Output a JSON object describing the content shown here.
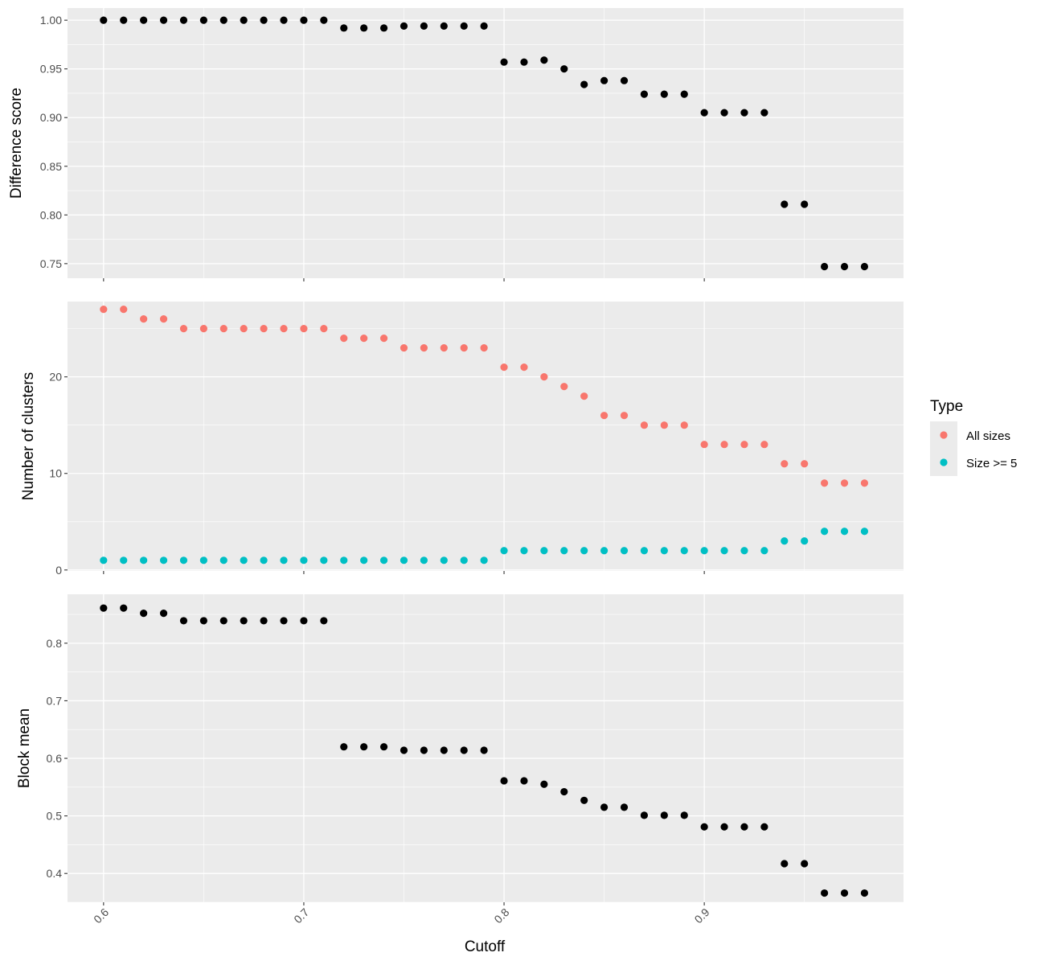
{
  "chart_data": [
    {
      "type": "scatter",
      "ylabel": "Difference score",
      "xlim": [
        0.582,
        0.9995
      ],
      "ylim": [
        0.735,
        1.0125
      ],
      "yticks": [
        0.75,
        0.8,
        0.85,
        0.9,
        0.95,
        1.0
      ],
      "ytick_labels": [
        "0.75",
        "0.80",
        "0.85",
        "0.90",
        "0.95",
        "1.00"
      ],
      "series": [
        {
          "color": "#000000",
          "x": [
            0.6,
            0.61,
            0.62,
            0.63,
            0.64,
            0.65,
            0.66,
            0.67,
            0.68,
            0.69,
            0.7,
            0.71,
            0.72,
            0.73,
            0.74,
            0.75,
            0.76,
            0.77,
            0.78,
            0.79,
            0.8,
            0.81,
            0.82,
            0.83,
            0.84,
            0.85,
            0.86,
            0.87,
            0.88,
            0.89,
            0.9,
            0.91,
            0.92,
            0.93,
            0.94,
            0.95,
            0.96,
            0.97,
            0.98
          ],
          "y": [
            1.0,
            1.0,
            1.0,
            1.0,
            1.0,
            1.0,
            1.0,
            1.0,
            1.0,
            1.0,
            1.0,
            1.0,
            0.992,
            0.992,
            0.992,
            0.994,
            0.994,
            0.994,
            0.994,
            0.994,
            0.957,
            0.957,
            0.959,
            0.95,
            0.934,
            0.938,
            0.938,
            0.924,
            0.924,
            0.924,
            0.905,
            0.905,
            0.905,
            0.905,
            0.811,
            0.811,
            0.747,
            0.747,
            0.747
          ]
        }
      ]
    },
    {
      "type": "scatter",
      "ylabel": "Number of clusters",
      "xlim": [
        0.582,
        0.9995
      ],
      "ylim": [
        -0.1,
        27.8
      ],
      "yticks": [
        0,
        10,
        20
      ],
      "ytick_labels": [
        "0",
        "10",
        "20"
      ],
      "series": [
        {
          "name": "All sizes",
          "color": "#F8766D",
          "x": [
            0.6,
            0.61,
            0.62,
            0.63,
            0.64,
            0.65,
            0.66,
            0.67,
            0.68,
            0.69,
            0.7,
            0.71,
            0.72,
            0.73,
            0.74,
            0.75,
            0.76,
            0.77,
            0.78,
            0.79,
            0.8,
            0.81,
            0.82,
            0.83,
            0.84,
            0.85,
            0.86,
            0.87,
            0.88,
            0.89,
            0.9,
            0.91,
            0.92,
            0.93,
            0.94,
            0.95,
            0.96,
            0.97,
            0.98
          ],
          "y": [
            27,
            27,
            26,
            26,
            25,
            25,
            25,
            25,
            25,
            25,
            25,
            25,
            24,
            24,
            24,
            23,
            23,
            23,
            23,
            23,
            21,
            21,
            20,
            19,
            18,
            16,
            16,
            15,
            15,
            15,
            13,
            13,
            13,
            13,
            11,
            11,
            9,
            9,
            9
          ]
        },
        {
          "name": "Size >= 5",
          "color": "#00BFC4",
          "x": [
            0.6,
            0.61,
            0.62,
            0.63,
            0.64,
            0.65,
            0.66,
            0.67,
            0.68,
            0.69,
            0.7,
            0.71,
            0.72,
            0.73,
            0.74,
            0.75,
            0.76,
            0.77,
            0.78,
            0.79,
            0.8,
            0.81,
            0.82,
            0.83,
            0.84,
            0.85,
            0.86,
            0.87,
            0.88,
            0.89,
            0.9,
            0.91,
            0.92,
            0.93,
            0.94,
            0.95,
            0.96,
            0.97,
            0.98
          ],
          "y": [
            1,
            1,
            1,
            1,
            1,
            1,
            1,
            1,
            1,
            1,
            1,
            1,
            1,
            1,
            1,
            1,
            1,
            1,
            1,
            1,
            2,
            2,
            2,
            2,
            2,
            2,
            2,
            2,
            2,
            2,
            2,
            2,
            2,
            2,
            3,
            3,
            4,
            4,
            4
          ]
        }
      ]
    },
    {
      "type": "scatter",
      "ylabel": "Block mean",
      "xlabel": "Cutoff",
      "xlim": [
        0.582,
        0.9995
      ],
      "ylim": [
        0.35,
        0.885
      ],
      "yticks": [
        0.4,
        0.5,
        0.6,
        0.7,
        0.8
      ],
      "ytick_labels": [
        "0.4",
        "0.5",
        "0.6",
        "0.7",
        "0.8"
      ],
      "series": [
        {
          "color": "#000000",
          "x": [
            0.6,
            0.61,
            0.62,
            0.63,
            0.64,
            0.65,
            0.66,
            0.67,
            0.68,
            0.69,
            0.7,
            0.71,
            0.72,
            0.73,
            0.74,
            0.75,
            0.76,
            0.77,
            0.78,
            0.79,
            0.8,
            0.81,
            0.82,
            0.83,
            0.84,
            0.85,
            0.86,
            0.87,
            0.88,
            0.89,
            0.9,
            0.91,
            0.92,
            0.93,
            0.94,
            0.95,
            0.96,
            0.97,
            0.98
          ],
          "y": [
            0.861,
            0.861,
            0.852,
            0.852,
            0.839,
            0.839,
            0.839,
            0.839,
            0.839,
            0.839,
            0.839,
            0.839,
            0.62,
            0.62,
            0.62,
            0.614,
            0.614,
            0.614,
            0.614,
            0.614,
            0.561,
            0.561,
            0.555,
            0.542,
            0.527,
            0.515,
            0.515,
            0.501,
            0.501,
            0.501,
            0.481,
            0.481,
            0.481,
            0.481,
            0.417,
            0.417,
            0.366,
            0.366,
            0.366
          ]
        }
      ]
    }
  ],
  "xaxis": {
    "ticks": [
      0.6,
      0.7,
      0.8,
      0.9
    ],
    "tick_labels": [
      "0.6",
      "0.7",
      "0.8",
      "0.9"
    ],
    "minor_ticks": [
      0.65,
      0.75,
      0.85,
      0.95
    ],
    "label": "Cutoff"
  },
  "legend": {
    "title": "Type",
    "position": "right",
    "items": [
      {
        "label": "All sizes",
        "color": "#F8766D"
      },
      {
        "label": "Size >= 5",
        "color": "#00BFC4"
      }
    ]
  },
  "colors": {
    "panel_bg": "#EBEBEB",
    "grid": "#FFFFFF",
    "tick": "#333333"
  }
}
